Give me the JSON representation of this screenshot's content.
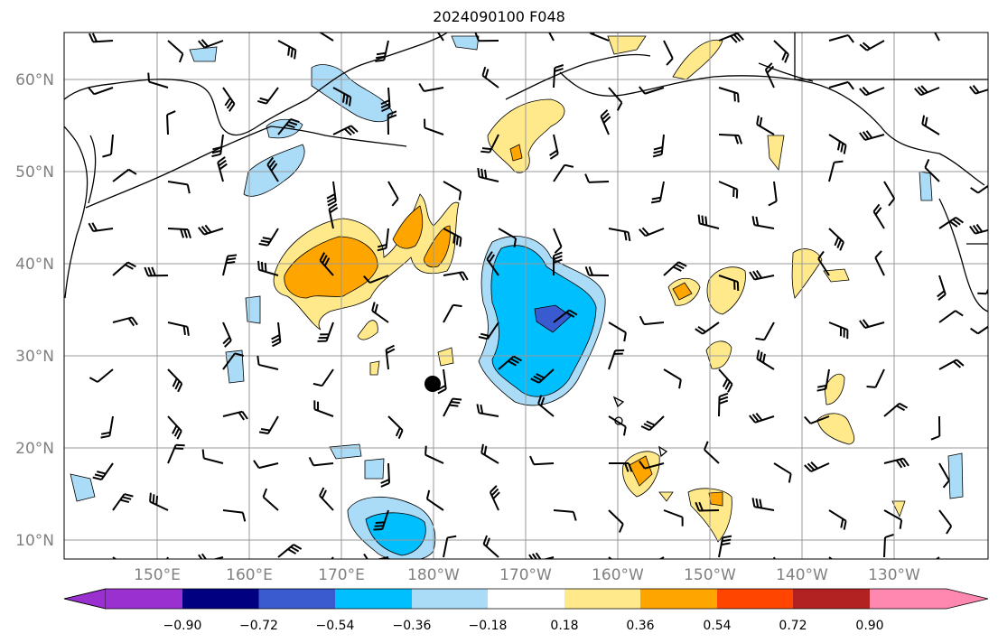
{
  "title": "2024090100 F048",
  "map": {
    "lat_labels": [
      "60°N",
      "50°N",
      "40°N",
      "30°N",
      "20°N",
      "10°N"
    ],
    "lon_labels": [
      "150°E",
      "160°E",
      "170°E",
      "180°W",
      "170°W",
      "160°W",
      "150°W",
      "140°W",
      "130°W"
    ],
    "grid": true,
    "fill_colors": {
      "lt_blue": "#aadcf8",
      "cyan": "#00bfff",
      "med_blue": "#3a5bd0",
      "yellow": "#ffe98a",
      "orange": "#ffa500",
      "dark_orange": "#ff7700"
    },
    "marker": "black-dot"
  },
  "colorbar": {
    "labels": [
      "−0.90",
      "−0.72",
      "−0.54",
      "−0.36",
      "−0.18",
      "0.18",
      "0.36",
      "0.54",
      "0.72",
      "0.90"
    ],
    "colors": [
      "#9b30d0",
      "#000080",
      "#3a5bd0",
      "#00bfff",
      "#aadcf8",
      "#ffffff",
      "#ffe98a",
      "#ffa500",
      "#ff4500",
      "#b22222",
      "#ff88b0"
    ]
  }
}
